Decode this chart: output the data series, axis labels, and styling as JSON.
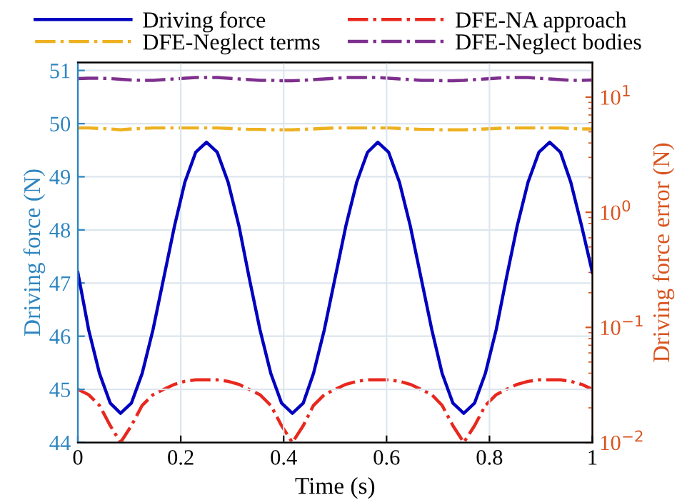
{
  "chart_data": {
    "type": "line",
    "xlabel": "Time (s)",
    "ylabel": "Driving force (N)",
    "y2label": "Driving force error (N)",
    "x": [
      0,
      0.021,
      0.042,
      0.063,
      0.083,
      0.104,
      0.125,
      0.146,
      0.167,
      0.188,
      0.208,
      0.229,
      0.25,
      0.271,
      0.292,
      0.313,
      0.333,
      0.354,
      0.375,
      0.396,
      0.417,
      0.438,
      0.458,
      0.479,
      0.5,
      0.521,
      0.542,
      0.563,
      0.583,
      0.604,
      0.625,
      0.646,
      0.667,
      0.688,
      0.708,
      0.729,
      0.75,
      0.771,
      0.792,
      0.813,
      0.833,
      0.854,
      0.875,
      0.896,
      0.917,
      0.938,
      0.958,
      0.979,
      1
    ],
    "series": [
      {
        "name": "Driving force",
        "color": "#0000c0",
        "line_style": "solid",
        "values": [
          47.2,
          46.12,
          45.3,
          44.74,
          44.55,
          44.74,
          45.3,
          46.12,
          47.1,
          48.08,
          48.9,
          49.46,
          49.65,
          49.46,
          48.9,
          48.08,
          47.1,
          46.12,
          45.3,
          44.74,
          44.55,
          44.74,
          45.3,
          46.12,
          47.1,
          48.08,
          48.9,
          49.46,
          49.65,
          49.46,
          48.9,
          48.08,
          47.1,
          46.12,
          45.3,
          44.74,
          44.55,
          44.74,
          45.3,
          46.12,
          47.1,
          48.08,
          48.9,
          49.46,
          49.65,
          49.46,
          48.9,
          48.08,
          47.2
        ]
      },
      {
        "name": "DFE-NA approach",
        "color": "#e8281e",
        "line_style": "dashdot",
        "axis": "y2",
        "values": [
          0.029,
          0.026,
          0.021,
          0.014,
          0.01,
          0.014,
          0.021,
          0.026,
          0.029,
          0.032,
          0.034,
          0.035,
          0.035,
          0.035,
          0.034,
          0.032,
          0.029,
          0.026,
          0.021,
          0.014,
          0.01,
          0.014,
          0.021,
          0.026,
          0.029,
          0.032,
          0.034,
          0.035,
          0.035,
          0.035,
          0.034,
          0.032,
          0.029,
          0.026,
          0.021,
          0.014,
          0.01,
          0.014,
          0.021,
          0.026,
          0.029,
          0.032,
          0.034,
          0.035,
          0.035,
          0.035,
          0.034,
          0.032,
          0.029
        ]
      },
      {
        "name": "DFE-Neglect terms",
        "color": "#edb120",
        "line_style": "dashdot",
        "axis": "y2",
        "values": [
          5.4,
          5.4,
          5.35,
          5.3,
          5.2,
          5.3,
          5.35,
          5.4,
          5.4,
          5.4,
          5.4,
          5.4,
          5.4,
          5.4,
          5.35,
          5.3,
          5.25,
          5.25,
          5.2,
          5.2,
          5.2,
          5.25,
          5.3,
          5.35,
          5.4,
          5.4,
          5.4,
          5.4,
          5.4,
          5.4,
          5.35,
          5.3,
          5.25,
          5.25,
          5.2,
          5.2,
          5.2,
          5.25,
          5.3,
          5.35,
          5.4,
          5.4,
          5.4,
          5.4,
          5.4,
          5.4,
          5.35,
          5.3,
          5.3
        ]
      },
      {
        "name": "DFE-Neglect bodies",
        "color": "#7e2f8e",
        "line_style": "dashdot",
        "axis": "y2",
        "values": [
          14.5,
          14.6,
          14.6,
          14.5,
          14.3,
          14.1,
          14.0,
          14.0,
          14.2,
          14.4,
          14.6,
          14.8,
          14.8,
          14.8,
          14.6,
          14.4,
          14.2,
          14.0,
          14.0,
          13.9,
          13.9,
          14.0,
          14.2,
          14.4,
          14.6,
          14.8,
          14.8,
          14.8,
          14.8,
          14.6,
          14.4,
          14.2,
          14.0,
          14.0,
          13.9,
          13.9,
          14.0,
          14.2,
          14.4,
          14.6,
          14.8,
          14.8,
          14.8,
          14.6,
          14.4,
          14.2,
          14.0,
          14.0,
          14.1
        ]
      }
    ],
    "xlim": [
      0,
      1
    ],
    "xticks": [
      0,
      0.2,
      0.4,
      0.6,
      0.8,
      1
    ],
    "ylim": [
      44,
      51.15
    ],
    "yticks": [
      44,
      45,
      46,
      47,
      48,
      49,
      50,
      51
    ],
    "log": "y2",
    "y2lim": [
      0.01,
      20
    ],
    "y2ticks": [
      {
        "value": 0.01,
        "label": "10$^{−2}$"
      },
      {
        "value": 0.1,
        "label": "10$^{−1}$"
      },
      {
        "value": 1,
        "label": "10$^{0}$"
      },
      {
        "value": 10,
        "label": "10$^{1}$"
      }
    ],
    "grid": true,
    "legend": "top",
    "marker": "none"
  }
}
